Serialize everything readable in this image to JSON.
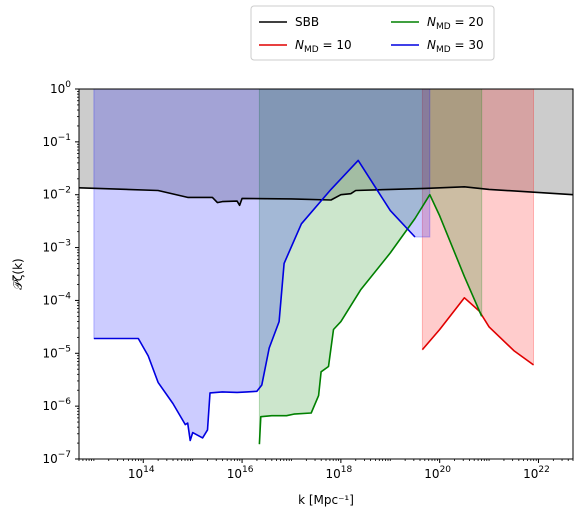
{
  "chart_data": {
    "type": "line",
    "xlabel": "k [Mpc⁻¹]",
    "ylabel": "𝒫ζ(k)",
    "xscale": "log",
    "yscale": "log",
    "xlim": [
      5000000000000.0,
      5e+22
    ],
    "ylim": [
      1e-07,
      1
    ],
    "grid": false,
    "legend": {
      "placement": "top-center-outside",
      "columns": 2
    },
    "x_ticks": [
      {
        "exp": 14,
        "label": "10",
        "sup": "14"
      },
      {
        "exp": 16,
        "label": "10",
        "sup": "16"
      },
      {
        "exp": 18,
        "label": "10",
        "sup": "18"
      },
      {
        "exp": 20,
        "label": "10",
        "sup": "20"
      },
      {
        "exp": 22,
        "label": "10",
        "sup": "22"
      }
    ],
    "y_ticks": [
      {
        "exp": 0,
        "label": "10",
        "sup": "0"
      },
      {
        "exp": -1,
        "label": "10",
        "sup": "−1"
      },
      {
        "exp": -2,
        "label": "10",
        "sup": "−2"
      },
      {
        "exp": -3,
        "label": "10",
        "sup": "−3"
      },
      {
        "exp": -4,
        "label": "10",
        "sup": "−4"
      },
      {
        "exp": -5,
        "label": "10",
        "sup": "−5"
      },
      {
        "exp": -6,
        "label": "10",
        "sup": "−6"
      },
      {
        "exp": -7,
        "label": "10",
        "sup": "−7"
      }
    ],
    "exclusion_region": {
      "color": "#aaaaaa",
      "upper": 1,
      "boundary_log": [
        [
          12.7,
          -1.87
        ],
        [
          14.3,
          -1.92
        ],
        [
          14.9,
          -2.05
        ],
        [
          15.4,
          -2.05
        ],
        [
          15.5,
          -2.15
        ],
        [
          15.6,
          -2.13
        ],
        [
          15.9,
          -2.12
        ],
        [
          15.95,
          -2.2
        ],
        [
          16.0,
          -2.07
        ],
        [
          17.0,
          -2.08
        ],
        [
          17.8,
          -2.1
        ],
        [
          18.0,
          -2.0
        ],
        [
          18.2,
          -1.98
        ],
        [
          18.3,
          -1.92
        ],
        [
          19.0,
          -1.9
        ],
        [
          19.7,
          -1.88
        ],
        [
          20.5,
          -1.85
        ],
        [
          21.0,
          -1.9
        ],
        [
          22.7,
          -2.0
        ]
      ]
    },
    "series": [
      {
        "name": "SBB",
        "color": "#000000",
        "line_log": [
          [
            12.7,
            -1.87
          ],
          [
            14.3,
            -1.92
          ],
          [
            14.9,
            -2.05
          ],
          [
            15.4,
            -2.05
          ],
          [
            15.5,
            -2.15
          ],
          [
            15.6,
            -2.13
          ],
          [
            15.9,
            -2.12
          ],
          [
            15.95,
            -2.2
          ],
          [
            16.0,
            -2.07
          ],
          [
            17.0,
            -2.08
          ],
          [
            17.8,
            -2.1
          ],
          [
            18.0,
            -2.0
          ],
          [
            18.2,
            -1.98
          ],
          [
            18.3,
            -1.92
          ],
          [
            19.0,
            -1.9
          ],
          [
            19.7,
            -1.88
          ],
          [
            20.5,
            -1.85
          ],
          [
            21.0,
            -1.9
          ],
          [
            22.7,
            -2.0
          ]
        ]
      },
      {
        "name": "N_MD = 10",
        "color": "#e00000",
        "line_log": [
          [
            19.65,
            -4.93
          ],
          [
            20.0,
            -4.55
          ],
          [
            20.5,
            -3.95
          ],
          [
            20.8,
            -4.2
          ],
          [
            21.0,
            -4.5
          ],
          [
            21.5,
            -4.95
          ],
          [
            21.9,
            -5.22
          ]
        ],
        "band": {
          "x_log": [
            19.65,
            21.9
          ],
          "fill": "#ff0000",
          "opacity": 0.2
        }
      },
      {
        "name": "N_MD = 20",
        "color": "#008000",
        "line_log": [
          [
            16.35,
            -6.72
          ],
          [
            16.38,
            -6.2
          ],
          [
            16.6,
            -6.18
          ],
          [
            16.9,
            -6.18
          ],
          [
            17.05,
            -6.15
          ],
          [
            17.4,
            -6.13
          ],
          [
            17.55,
            -5.8
          ],
          [
            17.6,
            -5.35
          ],
          [
            17.75,
            -5.25
          ],
          [
            17.85,
            -4.55
          ],
          [
            18.0,
            -4.4
          ],
          [
            18.4,
            -3.8
          ],
          [
            19.0,
            -3.1
          ],
          [
            19.5,
            -2.45
          ],
          [
            19.8,
            -2.0
          ],
          [
            20.0,
            -2.4
          ],
          [
            20.5,
            -3.55
          ],
          [
            20.85,
            -4.3
          ]
        ],
        "band": {
          "x_log": [
            16.35,
            20.85
          ],
          "fill": "#008000",
          "opacity": 0.2
        }
      },
      {
        "name": "N_MD = 30",
        "color": "#0000e0",
        "line_log": [
          [
            13.0,
            -4.72
          ],
          [
            13.2,
            -4.72
          ],
          [
            13.9,
            -4.72
          ],
          [
            14.1,
            -5.05
          ],
          [
            14.3,
            -5.55
          ],
          [
            14.6,
            -5.95
          ],
          [
            14.85,
            -6.35
          ],
          [
            14.9,
            -6.32
          ],
          [
            14.95,
            -6.65
          ],
          [
            15.0,
            -6.5
          ],
          [
            15.2,
            -6.6
          ],
          [
            15.3,
            -6.45
          ],
          [
            15.35,
            -5.75
          ],
          [
            15.6,
            -5.73
          ],
          [
            15.9,
            -5.74
          ],
          [
            16.1,
            -5.73
          ],
          [
            16.3,
            -5.72
          ],
          [
            16.4,
            -5.6
          ],
          [
            16.55,
            -4.9
          ],
          [
            16.75,
            -4.4
          ],
          [
            16.8,
            -3.85
          ],
          [
            16.85,
            -3.3
          ],
          [
            17.2,
            -2.55
          ],
          [
            17.8,
            -1.9
          ],
          [
            18.35,
            -1.35
          ],
          [
            19.0,
            -2.3
          ],
          [
            19.5,
            -2.8
          ]
        ],
        "band": {
          "x_log": [
            13.0,
            19.8
          ],
          "fill": "#0000ff",
          "opacity": 0.2
        }
      }
    ]
  }
}
